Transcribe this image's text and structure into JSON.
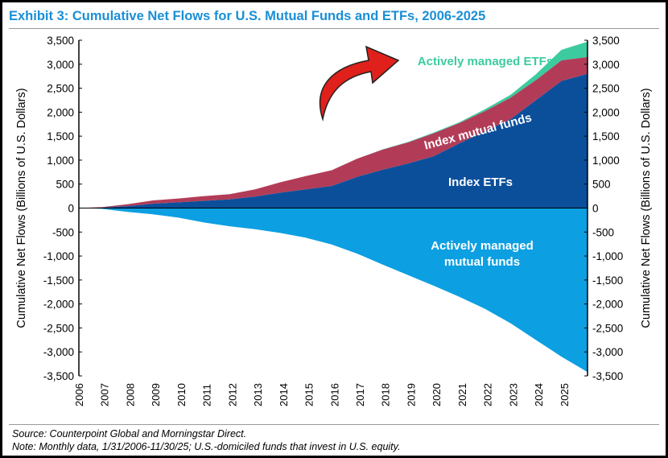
{
  "title": "Exhibit 3: Cumulative Net Flows for U.S. Mutual Funds and ETFs, 2006-2025",
  "source": "Source: Counterpoint Global and Morningstar Direct.",
  "note": "Note: Monthly data, 1/31/2006-11/30/25; U.S.-domiciled funds that invest in U.S. equity.",
  "colors": {
    "title": "#1a8fd6",
    "index_etfs": "#0b4f9b",
    "index_mf": "#b23c58",
    "active_etfs": "#3ccb9f",
    "active_mf": "#0c9fe2",
    "arrow": "#e0201b"
  },
  "chart_data": {
    "type": "area",
    "title": "Cumulative Net Flows for U.S. Mutual Funds and ETFs, 2006-2025",
    "ylabel": "Cumulative Net Flows (Billions of U.S. Dollars)",
    "ylabel_right": "Cumulative Net Flows (Billions of U.S. Dollars)",
    "ylim": [
      -3500,
      3500
    ],
    "yticks": [
      3500,
      3000,
      2500,
      2000,
      1500,
      1000,
      500,
      0,
      -500,
      -1000,
      -1500,
      -2000,
      -2500,
      -3000,
      -3500
    ],
    "ytick_labels": [
      "3,500",
      "3,000",
      "2,500",
      "2,000",
      "1,500",
      "1,000",
      "500",
      "0",
      "-500",
      "-1,000",
      "-1,500",
      "-2,000",
      "-2,500",
      "-3,000",
      "-3,500"
    ],
    "xticks": [
      "2006",
      "2007",
      "2008",
      "2009",
      "2010",
      "2011",
      "2012",
      "2013",
      "2014",
      "2015",
      "2016",
      "2017",
      "2018",
      "2019",
      "2020",
      "2021",
      "2022",
      "2023",
      "2024",
      "2025"
    ],
    "xlim": [
      2006,
      2025.92
    ],
    "x": [
      2006,
      2006.9,
      2007.9,
      2008.9,
      2009.9,
      2010.9,
      2011.9,
      2012.9,
      2013.9,
      2014.9,
      2015.9,
      2016.9,
      2017.9,
      2018.9,
      2019.9,
      2020.9,
      2021.9,
      2022.9,
      2023.9,
      2024.9,
      2025.92
    ],
    "stacked": true,
    "series": [
      {
        "name": "Index ETFs",
        "label": "Index ETFs",
        "values": [
          0,
          10,
          40,
          90,
          120,
          150,
          180,
          240,
          320,
          390,
          460,
          650,
          800,
          930,
          1080,
          1350,
          1600,
          1850,
          2250,
          2650,
          2800
        ]
      },
      {
        "name": "Index mutual funds",
        "label": "Index mutual funds",
        "values": [
          0,
          10,
          40,
          70,
          80,
          100,
          110,
          150,
          220,
          280,
          330,
          380,
          420,
          440,
          480,
          420,
          420,
          450,
          420,
          430,
          350
        ]
      },
      {
        "name": "Actively managed ETFs",
        "label": "Actively managed ETFs",
        "values": [
          0,
          0,
          0,
          0,
          0,
          0,
          0,
          0,
          0,
          0,
          0,
          0,
          5,
          10,
          15,
          20,
          40,
          60,
          120,
          220,
          320
        ]
      },
      {
        "name": "Actively managed mutual funds",
        "label": [
          "Actively managed",
          "mutual funds"
        ],
        "values": [
          0,
          -15,
          -80,
          -130,
          -200,
          -300,
          -380,
          -440,
          -520,
          -620,
          -760,
          -950,
          -1180,
          -1400,
          -1620,
          -1850,
          -2100,
          -2400,
          -2750,
          -3100,
          -3420
        ]
      }
    ]
  }
}
